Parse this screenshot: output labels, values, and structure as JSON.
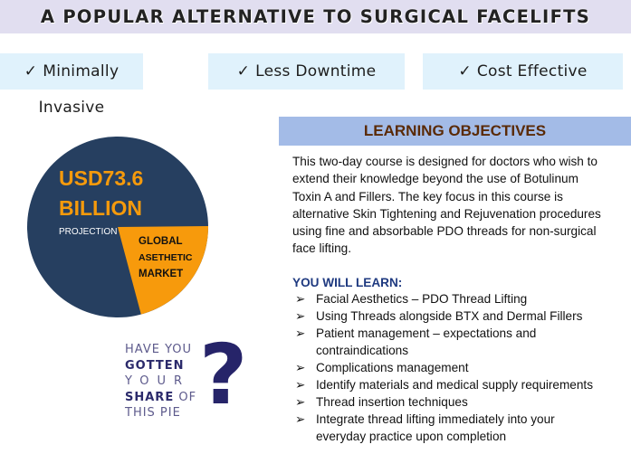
{
  "title": "A POPULAR ALTERNATIVE TO SURGICAL FACELIFTS",
  "benefits": [
    {
      "icon": "check-icon",
      "check": "✓",
      "label": "Minimally Invasive"
    },
    {
      "icon": "check-icon",
      "check": "✓",
      "label": "Less Downtime"
    },
    {
      "icon": "check-icon",
      "check": "✓",
      "label": "Cost Effective"
    }
  ],
  "pie": {
    "amount": "USD73.6",
    "unit": "BILLION",
    "projection": "PROJECTION",
    "slice_line1": "GLOBAL",
    "slice_line2": "ASETHETIC",
    "slice_line3": "MARKET",
    "slice_fraction": 0.21,
    "colors": {
      "main": "#263f60",
      "slice": "#f79a0c",
      "amount_text": "#f59a0c"
    }
  },
  "question": {
    "l1": "HAVE YOU",
    "l2": "GOTTEN",
    "l3": "YOUR",
    "l4a": "SHARE",
    "l4b": "OF",
    "l5": "THIS PIE",
    "mark": "?"
  },
  "objectives": {
    "heading": "LEARNING OBJECTIVES",
    "paragraph_lines": [
      "This two-day course is designed for doctors who wish to",
      "extend their knowledge beyond the use of Botulinum",
      "Toxin A and Fillers. The key focus in this course is",
      "alternative Skin Tightening and Rejuvenation procedures",
      "using fine and absorbable PDO threads for non-surgical",
      "face lifting."
    ],
    "learn_heading": "YOU WILL LEARN:",
    "bullet": "➢",
    "items": [
      "Facial Aesthetics – PDO Thread Lifting",
      "Using Threads alongside BTX and Dermal Fillers",
      "Patient management – expectations and contraindications",
      "Complications management",
      "Identify materials and medical supply requirements",
      "Thread insertion techniques",
      "Integrate thread lifting immediately into your everyday practice upon completion"
    ]
  }
}
